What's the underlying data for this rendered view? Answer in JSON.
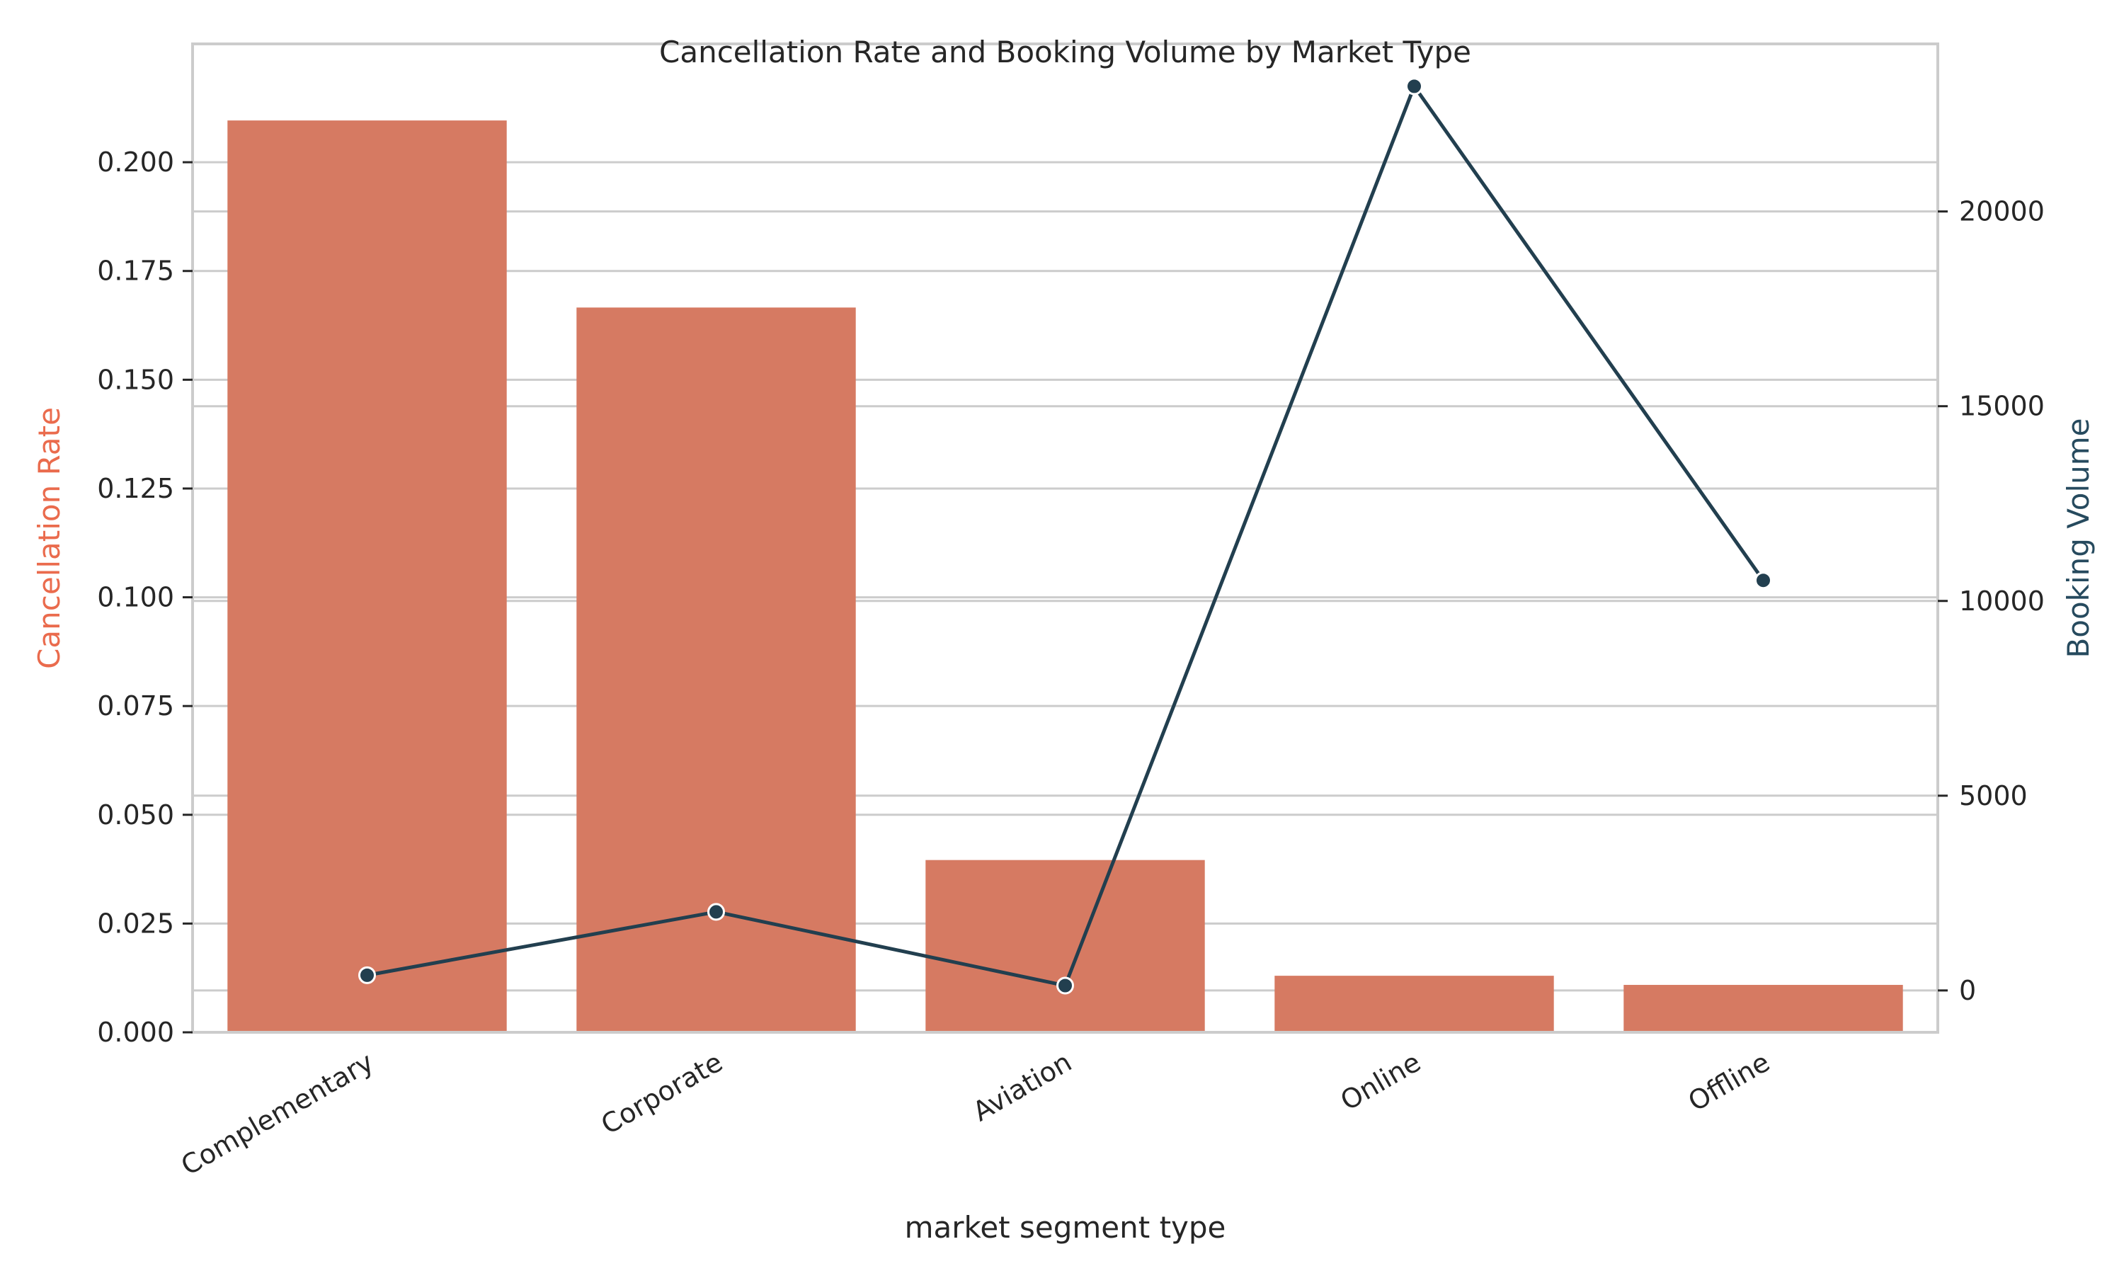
{
  "chart_data": {
    "type": "bar",
    "title": "Cancellation Rate and Booking Volume by Market Type",
    "xlabel": "market segment type",
    "categories": [
      "Complementary",
      "Corporate",
      "Aviation",
      "Online",
      "Offline"
    ],
    "series": [
      {
        "axis": "left",
        "chart_type": "bar",
        "values": [
          0.2096,
          0.1666,
          0.0396,
          0.013,
          0.0109
        ],
        "color": "#d67a62"
      },
      {
        "axis": "right",
        "chart_type": "line",
        "values": [
          391,
          2017,
          125,
          23214,
          10528
        ],
        "color": "#223f4f"
      }
    ],
    "ylabel_left": "Cancellation Rate",
    "ylabel_left_color": "#ea6b4d",
    "ylim_left": [
      0,
      0.2272
    ],
    "yticks_left": [
      "0.000",
      "0.025",
      "0.050",
      "0.075",
      "0.100",
      "0.125",
      "0.150",
      "0.175",
      "0.200"
    ],
    "ylabel_right": "Booking Volume",
    "ylabel_right_color": "#264a5e",
    "ylim_right": [
      -1075,
      24302
    ],
    "yticks_right": [
      "0",
      "5000",
      "10000",
      "15000",
      "20000"
    ],
    "grid": true,
    "legend": "none"
  }
}
